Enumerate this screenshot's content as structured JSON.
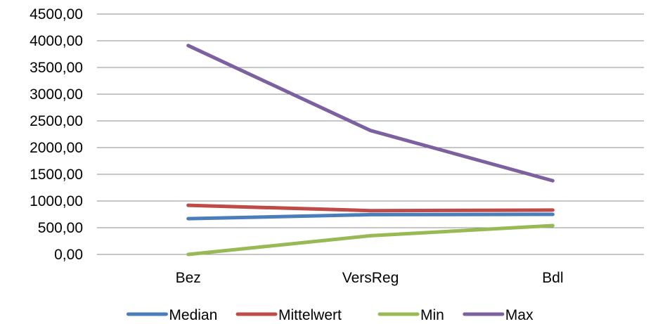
{
  "chart_data": {
    "type": "line",
    "categories": [
      "Bez",
      "VersReg",
      "Bdl"
    ],
    "ylim": [
      0,
      4500
    ],
    "yticks": [
      0,
      500,
      1000,
      1500,
      2000,
      2500,
      3000,
      3500,
      4000,
      4500
    ],
    "ytick_labels": [
      "0,00",
      "500,00",
      "1000,00",
      "1500,00",
      "2000,00",
      "2500,00",
      "3000,00",
      "3500,00",
      "4000,00",
      "4500,00"
    ],
    "grid": true,
    "legend_position": "bottom",
    "series": [
      {
        "name": "Median",
        "color": "#4a7ebb",
        "values": [
          670,
          745,
          750
        ]
      },
      {
        "name": "Mittelwert",
        "color": "#be4b48",
        "values": [
          920,
          820,
          830
        ]
      },
      {
        "name": "Min",
        "color": "#98b954",
        "values": [
          0,
          350,
          540
        ]
      },
      {
        "name": "Max",
        "color": "#7d60a0",
        "values": [
          3910,
          2320,
          1380
        ]
      }
    ]
  }
}
